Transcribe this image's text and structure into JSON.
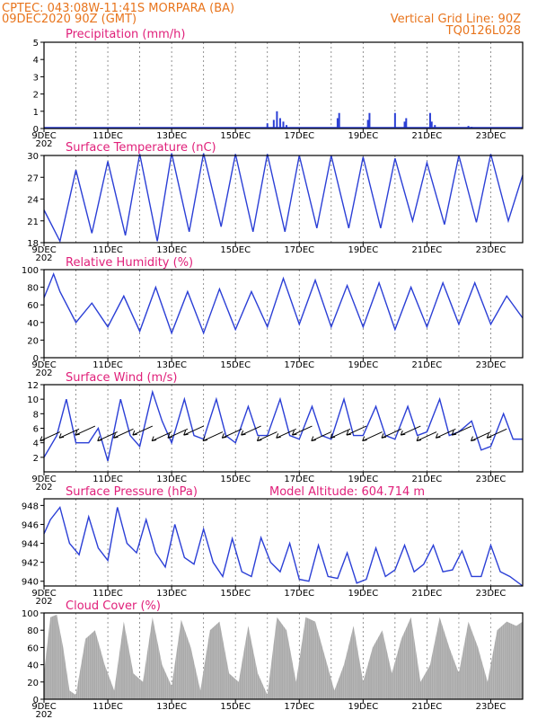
{
  "header": {
    "line1_left": "CPTEC:   043:08W-11:41S   MORPARA (BA)",
    "line2_left": "09DEC2020 90Z (GMT)",
    "line2_right": "Vertical Grid Line: 90Z",
    "line3_right": "TQ0126L028"
  },
  "colors": {
    "header": "#e8741c",
    "title": "#e0207a",
    "series": "#2b3fd6",
    "cloud": "#a9a9a9"
  },
  "x_axis": {
    "date_labels": [
      "9DEC",
      "11DEC",
      "13DEC",
      "15DEC",
      "17DEC",
      "19DEC",
      "21DEC",
      "23DEC"
    ],
    "year_stub": "202"
  },
  "chart_data": [
    {
      "type": "bar",
      "title": "Precipitation (mm/h)",
      "ylim": [
        0,
        5
      ],
      "yticks": [
        "0",
        "1",
        "2",
        "3",
        "4",
        "5"
      ],
      "x_days": [
        16.0,
        16.2,
        16.3,
        16.4,
        16.5,
        16.6,
        18.2,
        18.25,
        19.15,
        19.2,
        20.0,
        20.3,
        20.35,
        21.1,
        21.15,
        21.25,
        22.3,
        22.4
      ],
      "values": [
        0.3,
        0.5,
        1.0,
        0.6,
        0.4,
        0.2,
        0.6,
        0.9,
        0.5,
        0.9,
        0.9,
        0.4,
        0.6,
        0.9,
        0.4,
        0.2,
        0.15,
        0.1
      ],
      "baseline_note": ""
    },
    {
      "type": "line",
      "title": "Surface Temperature (nC)",
      "ylim": [
        18,
        30
      ],
      "yticks": [
        "18",
        "21",
        "24",
        "27",
        "30"
      ],
      "x_days": [
        9.0,
        9.5,
        10.0,
        10.5,
        11.0,
        11.55,
        12.0,
        12.55,
        13.0,
        13.55,
        14.0,
        14.55,
        15.0,
        15.55,
        16.0,
        16.55,
        17.0,
        17.55,
        18.0,
        18.55,
        19.0,
        19.55,
        20.0,
        20.55,
        21.0,
        21.55,
        22.0,
        22.55,
        23.0,
        23.55,
        24.0
      ],
      "values": [
        22.5,
        18.2,
        28,
        19.3,
        29.2,
        19,
        30.2,
        18.2,
        30.3,
        19.5,
        30.3,
        20.2,
        30.2,
        19.5,
        30.2,
        19.5,
        30,
        20,
        30,
        20,
        29.8,
        20,
        29.6,
        21,
        29,
        20.5,
        30,
        20.8,
        30.2,
        21,
        27.3
      ]
    },
    {
      "type": "line",
      "title": "Relative Humidity (%)",
      "ylim": [
        0,
        100
      ],
      "yticks": [
        "0",
        "20",
        "40",
        "60",
        "80",
        "100"
      ],
      "x_days": [
        9.0,
        9.3,
        9.5,
        10.0,
        10.5,
        11.0,
        11.5,
        12.0,
        12.5,
        13.0,
        13.5,
        14.0,
        14.5,
        15.0,
        15.5,
        16.0,
        16.5,
        17.0,
        17.5,
        18.0,
        18.5,
        19.0,
        19.5,
        20.0,
        20.5,
        21.0,
        21.5,
        22.0,
        22.5,
        23.0,
        23.5,
        24.0
      ],
      "values": [
        68,
        95,
        75,
        40,
        62,
        35,
        70,
        30,
        80,
        28,
        75,
        28,
        78,
        32,
        75,
        35,
        90,
        38,
        88,
        35,
        82,
        35,
        85,
        32,
        80,
        35,
        85,
        38,
        85,
        38,
        70,
        45
      ]
    },
    {
      "type": "line",
      "title": "Surface Wind (m/s)",
      "ylim": [
        0,
        12
      ],
      "yticks": [
        "2",
        "4",
        "6",
        "8",
        "10",
        "12"
      ],
      "x_days": [
        9.0,
        9.4,
        9.7,
        10.0,
        10.4,
        10.7,
        11.0,
        11.4,
        11.7,
        12.0,
        12.4,
        12.7,
        13.0,
        13.4,
        13.7,
        14.0,
        14.4,
        14.7,
        15.0,
        15.4,
        15.7,
        16.0,
        16.4,
        16.7,
        17.0,
        17.4,
        17.7,
        18.0,
        18.4,
        18.7,
        19.0,
        19.4,
        19.7,
        20.0,
        20.4,
        20.7,
        21.0,
        21.4,
        21.7,
        22.0,
        22.4,
        22.7,
        23.0,
        23.4,
        23.7,
        24.0
      ],
      "values": [
        2,
        5,
        10,
        4,
        4,
        6,
        1.5,
        10,
        5,
        3.5,
        11,
        7,
        4,
        10,
        5,
        4.5,
        10,
        5,
        4,
        9,
        5,
        5,
        10,
        5,
        4.5,
        9,
        5,
        4.5,
        10,
        5,
        5,
        9,
        5,
        4.5,
        9,
        5,
        5.5,
        10,
        5,
        5.5,
        7,
        3,
        3.5,
        8,
        4.5,
        4.5
      ],
      "vectors_days": [
        9.5,
        10.1,
        10.6,
        11.3,
        11.8,
        12.4,
        13.0,
        13.5,
        14.0,
        14.6,
        15.2,
        15.8,
        16.3,
        16.9,
        17.4,
        18.0,
        18.6,
        19.1,
        19.6,
        20.2,
        20.8,
        21.3,
        21.9,
        22.4,
        23.0,
        23.5
      ],
      "vector_direction": "from east-northeast"
    },
    {
      "type": "line",
      "title": "Surface Pressure (hPa)",
      "annotation": "Model Altitude: 604.714 m",
      "ylim": [
        939.5,
        948.7
      ],
      "yticks": [
        "940",
        "942",
        "944",
        "946",
        "948"
      ],
      "x_days": [
        9.0,
        9.2,
        9.5,
        9.8,
        10.1,
        10.4,
        10.7,
        11.0,
        11.3,
        11.6,
        11.9,
        12.2,
        12.5,
        12.8,
        13.1,
        13.4,
        13.7,
        14.0,
        14.3,
        14.6,
        14.9,
        15.2,
        15.5,
        15.8,
        16.1,
        16.4,
        16.7,
        17.0,
        17.3,
        17.6,
        17.9,
        18.2,
        18.5,
        18.8,
        19.1,
        19.4,
        19.7,
        20.0,
        20.3,
        20.6,
        20.9,
        21.2,
        21.5,
        21.8,
        22.1,
        22.4,
        22.7,
        23.0,
        23.3,
        23.6,
        24.0
      ],
      "values": [
        945,
        946.5,
        947.8,
        944,
        942.8,
        946.8,
        943.5,
        942.2,
        947.8,
        944,
        943,
        946.5,
        943,
        941.5,
        946,
        942.5,
        941.8,
        945.5,
        942,
        940.5,
        944.5,
        941,
        940.5,
        944.6,
        942,
        941,
        944,
        940.2,
        940,
        943.8,
        940.5,
        940.3,
        943,
        939.8,
        940.2,
        943.5,
        940.5,
        941.2,
        943.8,
        941,
        941.8,
        943.8,
        941,
        941.2,
        943.2,
        940.5,
        940.5,
        943.8,
        941,
        940.5,
        939.5
      ]
    },
    {
      "type": "area",
      "title": "Cloud Cover (%)",
      "ylim": [
        0,
        100
      ],
      "yticks": [
        "0",
        "20",
        "40",
        "60",
        "80",
        "100"
      ],
      "x_days": [
        9.0,
        9.2,
        9.4,
        9.6,
        9.8,
        10.0,
        10.3,
        10.6,
        10.9,
        11.2,
        11.5,
        11.8,
        12.1,
        12.4,
        12.7,
        13.0,
        13.3,
        13.6,
        13.9,
        14.2,
        14.5,
        14.8,
        15.1,
        15.4,
        15.7,
        16.0,
        16.3,
        16.6,
        16.9,
        17.2,
        17.5,
        17.8,
        18.1,
        18.4,
        18.7,
        19.0,
        19.3,
        19.6,
        19.9,
        20.2,
        20.5,
        20.8,
        21.1,
        21.4,
        21.7,
        22.0,
        22.3,
        22.6,
        22.9,
        23.2,
        23.5,
        23.8,
        24.0
      ],
      "values": [
        30,
        95,
        98,
        60,
        10,
        5,
        70,
        80,
        40,
        10,
        90,
        30,
        20,
        95,
        40,
        15,
        92,
        60,
        10,
        80,
        90,
        30,
        20,
        85,
        30,
        5,
        95,
        80,
        20,
        95,
        90,
        50,
        10,
        40,
        85,
        20,
        60,
        80,
        30,
        70,
        95,
        20,
        40,
        95,
        60,
        30,
        90,
        60,
        20,
        80,
        90,
        85,
        90
      ]
    }
  ]
}
